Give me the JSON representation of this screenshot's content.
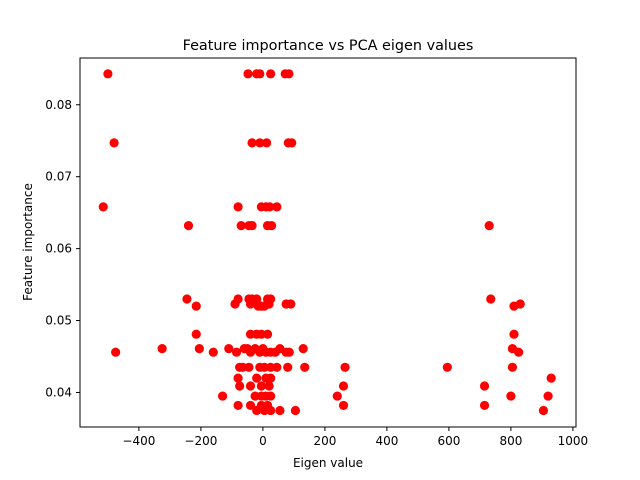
{
  "chart_data": {
    "type": "scatter",
    "title": "Feature importance vs PCA eigen values",
    "xlabel": "Eigen value",
    "ylabel": "Feature importance",
    "xlim": [
      -590,
      1010
    ],
    "ylim": [
      0.0352,
      0.0865
    ],
    "xticks": [
      -400,
      -200,
      0,
      200,
      400,
      600,
      800,
      1000
    ],
    "xtick_labels": [
      "−400",
      "−200",
      "0",
      "200",
      "400",
      "600",
      "800",
      "1000"
    ],
    "yticks": [
      0.04,
      0.05,
      0.06,
      0.07,
      0.08
    ],
    "ytick_labels": [
      "0.04",
      "0.05",
      "0.06",
      "0.07",
      "0.08"
    ],
    "grid": false,
    "marker_color": "#ff0000",
    "points": [
      {
        "x": -500,
        "y": 0.0843
      },
      {
        "x": -48,
        "y": 0.0843
      },
      {
        "x": -20,
        "y": 0.0843
      },
      {
        "x": -10,
        "y": 0.0843
      },
      {
        "x": 25,
        "y": 0.0843
      },
      {
        "x": 72,
        "y": 0.0843
      },
      {
        "x": 84,
        "y": 0.0843
      },
      {
        "x": -480,
        "y": 0.0747
      },
      {
        "x": -35,
        "y": 0.0747
      },
      {
        "x": -10,
        "y": 0.0747
      },
      {
        "x": 12,
        "y": 0.0747
      },
      {
        "x": 82,
        "y": 0.0747
      },
      {
        "x": 93,
        "y": 0.0747
      },
      {
        "x": -515,
        "y": 0.0658
      },
      {
        "x": -80,
        "y": 0.0658
      },
      {
        "x": -5,
        "y": 0.0658
      },
      {
        "x": 10,
        "y": 0.0658
      },
      {
        "x": 22,
        "y": 0.0658
      },
      {
        "x": 45,
        "y": 0.0658
      },
      {
        "x": 730,
        "y": 0.0632
      },
      {
        "x": -240,
        "y": 0.0632
      },
      {
        "x": -70,
        "y": 0.0632
      },
      {
        "x": -45,
        "y": 0.0632
      },
      {
        "x": -35,
        "y": 0.0632
      },
      {
        "x": 15,
        "y": 0.0632
      },
      {
        "x": 28,
        "y": 0.0632
      },
      {
        "x": -245,
        "y": 0.053
      },
      {
        "x": -80,
        "y": 0.053
      },
      {
        "x": -45,
        "y": 0.053
      },
      {
        "x": -35,
        "y": 0.053
      },
      {
        "x": -20,
        "y": 0.053
      },
      {
        "x": 15,
        "y": 0.053
      },
      {
        "x": 25,
        "y": 0.053
      },
      {
        "x": 735,
        "y": 0.053
      },
      {
        "x": -215,
        "y": 0.052
      },
      {
        "x": -90,
        "y": 0.0523
      },
      {
        "x": -40,
        "y": 0.0523
      },
      {
        "x": -15,
        "y": 0.052
      },
      {
        "x": -5,
        "y": 0.052
      },
      {
        "x": 5,
        "y": 0.052
      },
      {
        "x": 20,
        "y": 0.0523
      },
      {
        "x": 75,
        "y": 0.0523
      },
      {
        "x": 90,
        "y": 0.0523
      },
      {
        "x": 810,
        "y": 0.052
      },
      {
        "x": 830,
        "y": 0.0523
      },
      {
        "x": -215,
        "y": 0.0481
      },
      {
        "x": -40,
        "y": 0.0481
      },
      {
        "x": -20,
        "y": 0.0481
      },
      {
        "x": -5,
        "y": 0.0481
      },
      {
        "x": 15,
        "y": 0.0481
      },
      {
        "x": 810,
        "y": 0.0481
      },
      {
        "x": -205,
        "y": 0.0461
      },
      {
        "x": -325,
        "y": 0.0461
      },
      {
        "x": -475,
        "y": 0.0456
      },
      {
        "x": -160,
        "y": 0.0456
      },
      {
        "x": -110,
        "y": 0.0461
      },
      {
        "x": -85,
        "y": 0.0456
      },
      {
        "x": -60,
        "y": 0.0461
      },
      {
        "x": -50,
        "y": 0.0461
      },
      {
        "x": -40,
        "y": 0.0456
      },
      {
        "x": -25,
        "y": 0.0461
      },
      {
        "x": -10,
        "y": 0.0456
      },
      {
        "x": 0,
        "y": 0.0461
      },
      {
        "x": 10,
        "y": 0.0456
      },
      {
        "x": 25,
        "y": 0.0456
      },
      {
        "x": 40,
        "y": 0.0456
      },
      {
        "x": 55,
        "y": 0.0461
      },
      {
        "x": 75,
        "y": 0.0456
      },
      {
        "x": 85,
        "y": 0.0456
      },
      {
        "x": 130,
        "y": 0.0461
      },
      {
        "x": 805,
        "y": 0.0461
      },
      {
        "x": 825,
        "y": 0.0456
      },
      {
        "x": -75,
        "y": 0.0435
      },
      {
        "x": -65,
        "y": 0.0435
      },
      {
        "x": -45,
        "y": 0.0435
      },
      {
        "x": -10,
        "y": 0.0435
      },
      {
        "x": 5,
        "y": 0.0435
      },
      {
        "x": 25,
        "y": 0.0435
      },
      {
        "x": 45,
        "y": 0.0435
      },
      {
        "x": 80,
        "y": 0.0435
      },
      {
        "x": 135,
        "y": 0.0435
      },
      {
        "x": 265,
        "y": 0.0435
      },
      {
        "x": 595,
        "y": 0.0435
      },
      {
        "x": 805,
        "y": 0.0435
      },
      {
        "x": -80,
        "y": 0.042
      },
      {
        "x": -75,
        "y": 0.0409
      },
      {
        "x": -40,
        "y": 0.0409
      },
      {
        "x": -20,
        "y": 0.042
      },
      {
        "x": -5,
        "y": 0.0409
      },
      {
        "x": 10,
        "y": 0.042
      },
      {
        "x": 25,
        "y": 0.042
      },
      {
        "x": 20,
        "y": 0.0409
      },
      {
        "x": 260,
        "y": 0.0409
      },
      {
        "x": 715,
        "y": 0.0409
      },
      {
        "x": 930,
        "y": 0.042
      },
      {
        "x": -130,
        "y": 0.0395
      },
      {
        "x": -25,
        "y": 0.0395
      },
      {
        "x": -5,
        "y": 0.0395
      },
      {
        "x": 10,
        "y": 0.0395
      },
      {
        "x": 25,
        "y": 0.0395
      },
      {
        "x": 240,
        "y": 0.0395
      },
      {
        "x": 800,
        "y": 0.0395
      },
      {
        "x": 920,
        "y": 0.0395
      },
      {
        "x": -80,
        "y": 0.0382
      },
      {
        "x": -40,
        "y": 0.0382
      },
      {
        "x": -20,
        "y": 0.0375
      },
      {
        "x": -5,
        "y": 0.0382
      },
      {
        "x": 5,
        "y": 0.0375
      },
      {
        "x": 15,
        "y": 0.0382
      },
      {
        "x": 25,
        "y": 0.0375
      },
      {
        "x": 55,
        "y": 0.0375
      },
      {
        "x": 105,
        "y": 0.0375
      },
      {
        "x": 260,
        "y": 0.0382
      },
      {
        "x": 715,
        "y": 0.0382
      },
      {
        "x": 905,
        "y": 0.0375
      }
    ]
  }
}
